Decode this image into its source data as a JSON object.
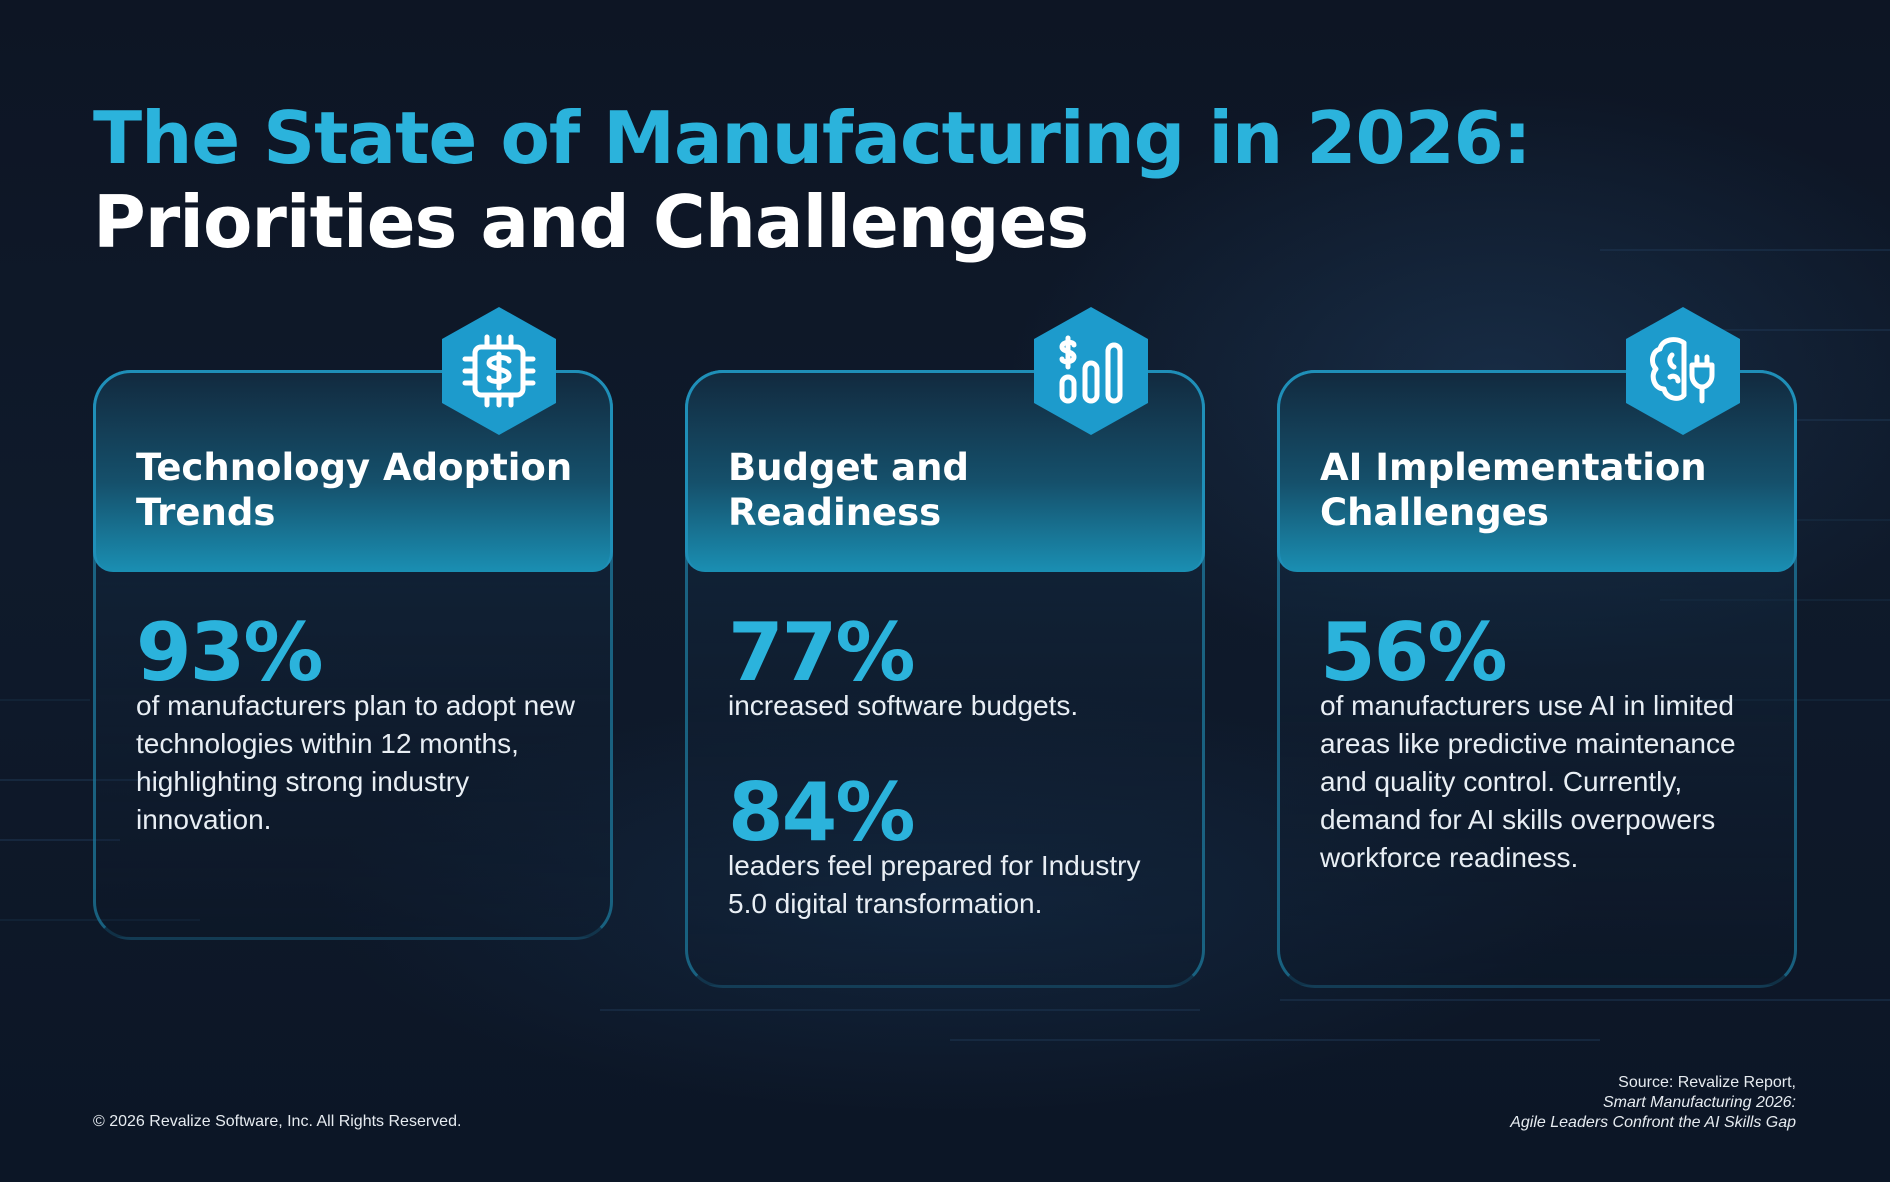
{
  "header": {
    "title_line1": "The State of Manufacturing in 2026:",
    "title_line2": "Priorities and Challenges"
  },
  "cards": [
    {
      "icon": "chip-dollar-icon",
      "title": "Technology Adoption Trends",
      "stats": [
        {
          "value": "93%",
          "text": "of manufacturers plan to adopt new technologies within 12 months, highlighting strong industry innovation."
        }
      ]
    },
    {
      "icon": "budget-bars-icon",
      "title": "Budget and Readiness",
      "stats": [
        {
          "value": "77%",
          "text": "increased software budgets."
        },
        {
          "value": "84%",
          "text": "leaders feel prepared for Industry 5.0 digital transformation."
        }
      ]
    },
    {
      "icon": "brain-plug-icon",
      "title": "AI Implementation Challenges",
      "stats": [
        {
          "value": "56%",
          "text": "of manufacturers use AI in limited areas like predictive maintenance and quality control. Currently, demand for AI skills overpowers workforce readiness."
        }
      ]
    }
  ],
  "footer": {
    "copyright": "© 2026 Revalize Software, Inc. All Rights Reserved.",
    "source_line1": "Source: Revalize Report,",
    "source_line2": "Smart Manufacturing 2026:",
    "source_line3": "Agile Leaders Confront the AI Skills Gap"
  },
  "colors": {
    "accent": "#2bb3dc",
    "background": "#0f1a2b",
    "text": "#ffffff"
  }
}
